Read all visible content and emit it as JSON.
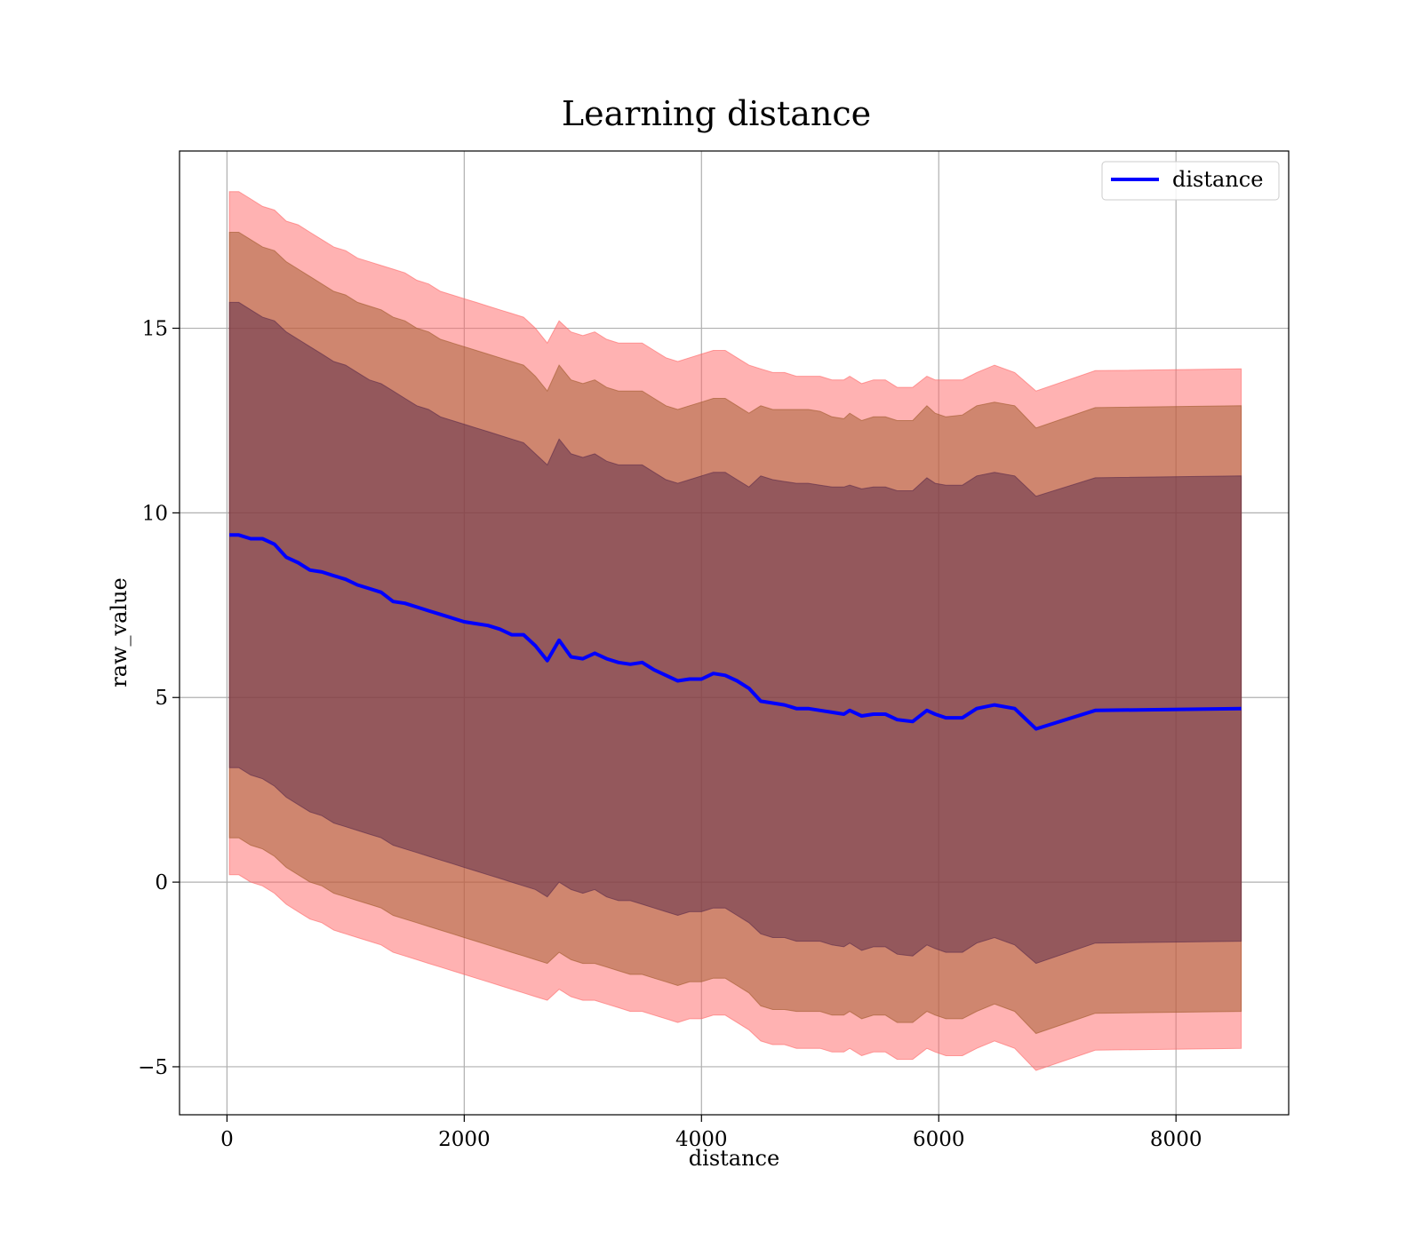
{
  "chart_data": {
    "type": "line",
    "title": "Learning distance",
    "xlabel": "distance",
    "ylabel": "raw_value",
    "xlim": [
      -400,
      8950
    ],
    "ylim": [
      -6.3,
      19.8
    ],
    "x_ticks": [
      0,
      2000,
      4000,
      6000,
      8000
    ],
    "x_tick_labels": [
      "0",
      "2000",
      "4000",
      "6000",
      "8000"
    ],
    "y_ticks": [
      -5,
      0,
      5,
      10,
      15
    ],
    "y_tick_labels": [
      "−5",
      "0",
      "5",
      "10",
      "15"
    ],
    "grid": true,
    "legend": {
      "position": "top-right",
      "entries": [
        "distance"
      ]
    },
    "colors": {
      "line": "#0000ff",
      "band_outer": "#ff6666",
      "band_middle": "#a05a2c",
      "band_inner": "#5a2a4a"
    },
    "x": [
      20,
      100,
      200,
      300,
      400,
      500,
      600,
      700,
      800,
      900,
      1000,
      1100,
      1200,
      1300,
      1400,
      1500,
      1600,
      1700,
      1800,
      1900,
      2000,
      2100,
      2200,
      2300,
      2400,
      2500,
      2600,
      2700,
      2800,
      2900,
      3000,
      3100,
      3200,
      3300,
      3400,
      3500,
      3600,
      3700,
      3800,
      3900,
      4000,
      4100,
      4200,
      4300,
      4400,
      4500,
      4600,
      4700,
      4800,
      4900,
      5000,
      5100,
      5200,
      5250,
      5350,
      5450,
      5550,
      5650,
      5780,
      5900,
      5970,
      6060,
      6200,
      6320,
      6470,
      6640,
      6820,
      7320,
      8550
    ],
    "series": [
      {
        "name": "distance",
        "values": [
          9.4,
          9.4,
          9.3,
          9.3,
          9.15,
          8.8,
          8.65,
          8.45,
          8.4,
          8.3,
          8.2,
          8.05,
          7.95,
          7.85,
          7.6,
          7.55,
          7.45,
          7.35,
          7.25,
          7.15,
          7.05,
          7.0,
          6.95,
          6.85,
          6.7,
          6.7,
          6.4,
          6.0,
          6.55,
          6.1,
          6.05,
          6.2,
          6.05,
          5.95,
          5.9,
          5.95,
          5.75,
          5.6,
          5.45,
          5.5,
          5.5,
          5.65,
          5.6,
          5.45,
          5.25,
          4.9,
          4.85,
          4.8,
          4.7,
          4.7,
          4.65,
          4.6,
          4.55,
          4.65,
          4.5,
          4.55,
          4.55,
          4.4,
          4.35,
          4.65,
          4.55,
          4.45,
          4.45,
          4.7,
          4.8,
          4.7,
          4.15,
          4.65,
          4.7
        ]
      },
      {
        "name": "",
        "fill": "band_outer",
        "upper": [
          18.7,
          18.7,
          18.5,
          18.3,
          18.2,
          17.9,
          17.8,
          17.6,
          17.4,
          17.2,
          17.1,
          16.9,
          16.8,
          16.7,
          16.6,
          16.5,
          16.3,
          16.2,
          16.0,
          15.9,
          15.8,
          15.7,
          15.6,
          15.5,
          15.4,
          15.3,
          15.0,
          14.6,
          15.2,
          14.9,
          14.8,
          14.9,
          14.7,
          14.6,
          14.6,
          14.6,
          14.4,
          14.2,
          14.1,
          14.2,
          14.3,
          14.4,
          14.4,
          14.2,
          14.0,
          13.9,
          13.8,
          13.8,
          13.7,
          13.7,
          13.7,
          13.6,
          13.6,
          13.7,
          13.5,
          13.6,
          13.6,
          13.4,
          13.4,
          13.7,
          13.6,
          13.6,
          13.6,
          13.8,
          14.0,
          13.8,
          13.3,
          13.85,
          13.9
        ],
        "lower": [
          0.2,
          0.2,
          0.0,
          -0.1,
          -0.3,
          -0.6,
          -0.8,
          -1.0,
          -1.1,
          -1.3,
          -1.4,
          -1.5,
          -1.6,
          -1.7,
          -1.9,
          -2.0,
          -2.1,
          -2.2,
          -2.3,
          -2.4,
          -2.5,
          -2.6,
          -2.7,
          -2.8,
          -2.9,
          -3.0,
          -3.1,
          -3.2,
          -2.9,
          -3.1,
          -3.2,
          -3.2,
          -3.3,
          -3.4,
          -3.5,
          -3.5,
          -3.6,
          -3.7,
          -3.8,
          -3.7,
          -3.7,
          -3.6,
          -3.6,
          -3.8,
          -4.0,
          -4.3,
          -4.4,
          -4.4,
          -4.5,
          -4.5,
          -4.5,
          -4.6,
          -4.6,
          -4.5,
          -4.7,
          -4.6,
          -4.6,
          -4.8,
          -4.8,
          -4.5,
          -4.6,
          -4.7,
          -4.7,
          -4.5,
          -4.3,
          -4.5,
          -5.1,
          -4.55,
          -4.5
        ]
      },
      {
        "name": "",
        "fill": "band_middle",
        "upper": [
          17.6,
          17.6,
          17.4,
          17.2,
          17.1,
          16.8,
          16.6,
          16.4,
          16.2,
          16.0,
          15.9,
          15.7,
          15.6,
          15.5,
          15.3,
          15.2,
          15.0,
          14.9,
          14.7,
          14.6,
          14.5,
          14.4,
          14.3,
          14.2,
          14.1,
          14.0,
          13.7,
          13.3,
          14.0,
          13.6,
          13.5,
          13.6,
          13.4,
          13.3,
          13.3,
          13.3,
          13.1,
          12.9,
          12.8,
          12.9,
          13.0,
          13.1,
          13.1,
          12.9,
          12.7,
          12.9,
          12.8,
          12.8,
          12.8,
          12.8,
          12.75,
          12.6,
          12.55,
          12.7,
          12.5,
          12.6,
          12.6,
          12.5,
          12.5,
          12.9,
          12.7,
          12.6,
          12.65,
          12.9,
          13.0,
          12.9,
          12.3,
          12.85,
          12.9
        ],
        "lower": [
          1.2,
          1.2,
          1.0,
          0.9,
          0.7,
          0.4,
          0.2,
          0.0,
          -0.1,
          -0.3,
          -0.4,
          -0.5,
          -0.6,
          -0.7,
          -0.9,
          -1.0,
          -1.1,
          -1.2,
          -1.3,
          -1.4,
          -1.5,
          -1.6,
          -1.7,
          -1.8,
          -1.9,
          -2.0,
          -2.1,
          -2.2,
          -1.9,
          -2.1,
          -2.2,
          -2.2,
          -2.3,
          -2.4,
          -2.5,
          -2.5,
          -2.6,
          -2.7,
          -2.8,
          -2.7,
          -2.7,
          -2.6,
          -2.6,
          -2.8,
          -3.0,
          -3.35,
          -3.45,
          -3.45,
          -3.5,
          -3.5,
          -3.5,
          -3.6,
          -3.6,
          -3.5,
          -3.7,
          -3.6,
          -3.6,
          -3.8,
          -3.8,
          -3.5,
          -3.6,
          -3.7,
          -3.7,
          -3.5,
          -3.3,
          -3.5,
          -4.1,
          -3.55,
          -3.5
        ]
      },
      {
        "name": "",
        "fill": "band_inner",
        "upper": [
          15.7,
          15.7,
          15.5,
          15.3,
          15.2,
          14.9,
          14.7,
          14.5,
          14.3,
          14.1,
          14.0,
          13.8,
          13.6,
          13.5,
          13.3,
          13.1,
          12.9,
          12.8,
          12.6,
          12.5,
          12.4,
          12.3,
          12.2,
          12.1,
          12.0,
          11.9,
          11.6,
          11.3,
          12.0,
          11.6,
          11.5,
          11.6,
          11.4,
          11.3,
          11.3,
          11.3,
          11.1,
          10.9,
          10.8,
          10.9,
          11.0,
          11.1,
          11.1,
          10.9,
          10.7,
          11.0,
          10.9,
          10.85,
          10.8,
          10.8,
          10.75,
          10.7,
          10.7,
          10.75,
          10.65,
          10.7,
          10.7,
          10.6,
          10.6,
          10.95,
          10.8,
          10.75,
          10.75,
          11.0,
          11.1,
          11.0,
          10.45,
          10.95,
          11.0
        ],
        "lower": [
          3.1,
          3.1,
          2.9,
          2.8,
          2.6,
          2.3,
          2.1,
          1.9,
          1.8,
          1.6,
          1.5,
          1.4,
          1.3,
          1.2,
          1.0,
          0.9,
          0.8,
          0.7,
          0.6,
          0.5,
          0.4,
          0.3,
          0.2,
          0.1,
          0.0,
          -0.1,
          -0.2,
          -0.4,
          0.0,
          -0.2,
          -0.3,
          -0.2,
          -0.4,
          -0.5,
          -0.5,
          -0.6,
          -0.7,
          -0.8,
          -0.9,
          -0.8,
          -0.8,
          -0.7,
          -0.7,
          -0.9,
          -1.1,
          -1.4,
          -1.5,
          -1.5,
          -1.6,
          -1.6,
          -1.6,
          -1.7,
          -1.75,
          -1.65,
          -1.85,
          -1.75,
          -1.75,
          -1.95,
          -2.0,
          -1.7,
          -1.8,
          -1.9,
          -1.9,
          -1.65,
          -1.5,
          -1.7,
          -2.2,
          -1.65,
          -1.6
        ]
      }
    ]
  }
}
